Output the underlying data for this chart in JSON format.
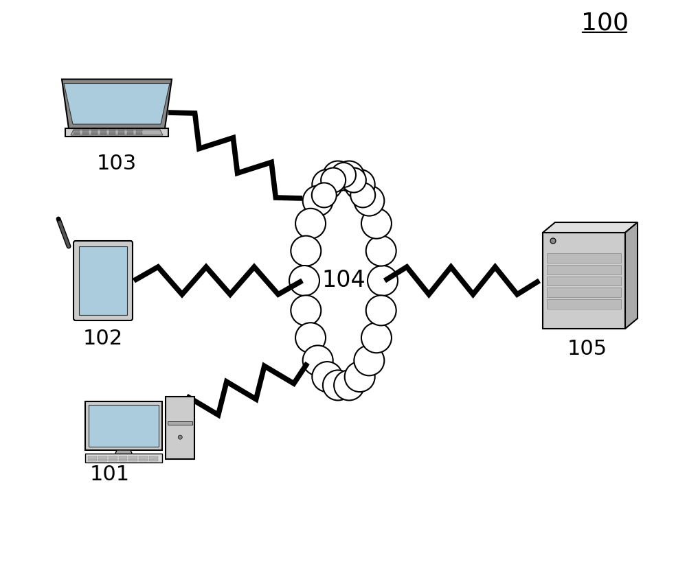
{
  "background_color": "#ffffff",
  "label_100": "100",
  "label_103": "103",
  "label_102": "102",
  "label_101": "101",
  "label_104": "104",
  "label_105": "105",
  "label_fontsize": 22,
  "ref_fontsize": 26,
  "fig_width": 10.0,
  "fig_height": 8.19,
  "dpi": 100
}
